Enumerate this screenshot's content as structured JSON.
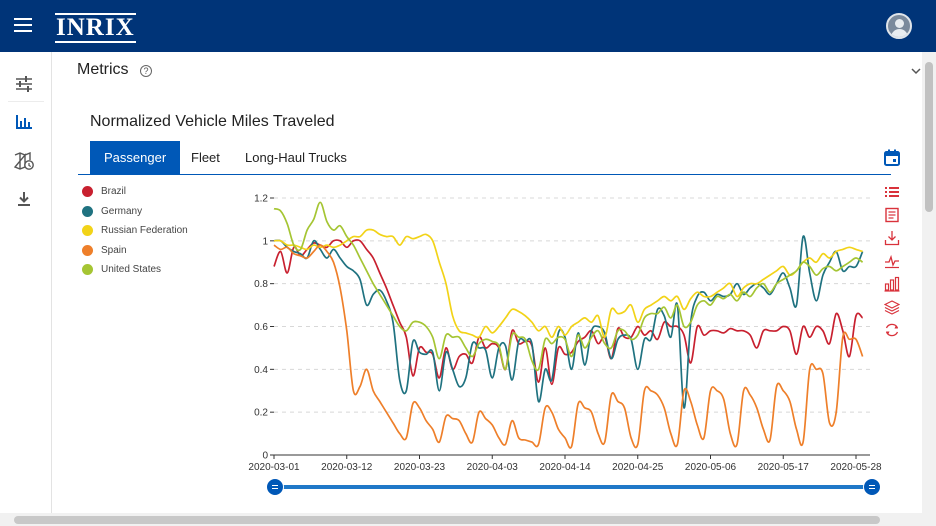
{
  "brand": {
    "logo_text": "INRIX",
    "color": "#003478",
    "accent": "#0058b7"
  },
  "header": {
    "avatar_icon": "user-avatar-icon"
  },
  "sidenav": {
    "items": [
      {
        "icon": "filter-sliders-icon",
        "active": false
      },
      {
        "icon": "bar-chart-icon",
        "active": true
      },
      {
        "icon": "map-clock-icon",
        "active": false
      },
      {
        "icon": "download-icon",
        "active": false
      }
    ]
  },
  "section": {
    "title": "Metrics"
  },
  "chart_title": "Normalized Vehicle Miles Traveled",
  "tabs": [
    {
      "label": "Passenger",
      "active": true
    },
    {
      "label": "Fleet",
      "active": false
    },
    {
      "label": "Long-Haul Trucks",
      "active": false
    }
  ],
  "toolbox": [
    "list-icon",
    "document-icon",
    "download-icon",
    "line-chart-icon",
    "bar-chart-icon",
    "stack-layers-icon",
    "refresh-icon"
  ],
  "chart_data": {
    "type": "line",
    "title": "Normalized Vehicle Miles Traveled",
    "xlabel": "",
    "ylabel": "",
    "x_ticks": [
      "2020-03-01",
      "2020-03-12",
      "2020-03-23",
      "2020-04-03",
      "2020-04-14",
      "2020-04-25",
      "2020-05-06",
      "2020-05-17",
      "2020-05-28"
    ],
    "y_ticks": [
      "0",
      "0.2",
      "0.4",
      "0.6",
      "0.8",
      "1",
      "1.2"
    ],
    "ylim": [
      0,
      1.2
    ],
    "x_start": "2020-03-01",
    "x_end": "2020-05-28",
    "grid": "horizontal dashed",
    "legend_position": "left",
    "series": [
      {
        "name": "Brazil",
        "color": "#c8202f",
        "values": [
          0.88,
          0.95,
          0.85,
          0.97,
          0.93,
          0.96,
          0.99,
          0.98,
          0.97,
          1.0,
          1.0,
          0.97,
          1.0,
          1.0,
          0.96,
          0.92,
          0.85,
          0.78,
          0.7,
          0.62,
          0.55,
          0.37,
          0.5,
          0.48,
          0.47,
          0.36,
          0.5,
          0.4,
          0.46,
          0.47,
          0.43,
          0.55,
          0.5,
          0.52,
          0.5,
          0.4,
          0.58,
          0.52,
          0.53,
          0.51,
          0.34,
          0.5,
          0.33,
          0.5,
          0.47,
          0.48,
          0.53,
          0.55,
          0.58,
          0.52,
          0.55,
          0.45,
          0.59,
          0.55,
          0.55,
          0.6,
          0.56,
          0.58,
          0.54,
          0.62,
          0.6,
          0.6,
          0.56,
          0.43,
          0.6,
          0.56,
          0.58,
          0.58,
          0.57,
          0.59,
          0.58,
          0.58,
          0.56,
          0.5,
          0.58,
          0.58,
          0.58,
          0.6,
          0.58,
          0.47,
          0.6,
          0.55,
          0.6,
          0.58,
          0.52,
          0.66,
          0.58,
          0.46,
          0.65,
          0.64
        ]
      },
      {
        "name": "Germany",
        "color": "#1f7280",
        "values": [
          1.0,
          1.0,
          0.97,
          0.95,
          0.94,
          0.92,
          1.0,
          0.96,
          0.92,
          0.96,
          0.92,
          0.88,
          0.86,
          0.82,
          0.7,
          0.75,
          0.77,
          0.72,
          0.62,
          0.35,
          0.3,
          0.53,
          0.48,
          0.47,
          0.48,
          0.3,
          0.48,
          0.4,
          0.32,
          0.36,
          0.52,
          0.5,
          0.49,
          0.36,
          0.5,
          0.51,
          0.35,
          0.53,
          0.53,
          0.52,
          0.25,
          0.4,
          0.35,
          0.57,
          0.55,
          0.4,
          0.57,
          0.42,
          0.58,
          0.6,
          0.57,
          0.45,
          0.54,
          0.56,
          0.54,
          0.4,
          0.54,
          0.54,
          0.68,
          0.65,
          0.55,
          0.7,
          0.22,
          0.62,
          0.74,
          0.76,
          0.72,
          0.75,
          0.74,
          0.75,
          0.8,
          0.75,
          0.78,
          0.8,
          0.78,
          0.75,
          0.8,
          0.85,
          0.78,
          0.7,
          1.02,
          0.85,
          0.72,
          0.84,
          0.9,
          0.95,
          0.86,
          0.88,
          0.88,
          0.95
        ]
      },
      {
        "name": "Russian Federation",
        "color": "#f2d318",
        "values": [
          1.0,
          1.0,
          0.98,
          0.98,
          0.97,
          0.96,
          0.98,
          0.97,
          0.98,
          0.97,
          0.98,
          1.0,
          1.02,
          1.02,
          1.05,
          1.05,
          1.03,
          1.02,
          1.02,
          0.98,
          1.02,
          1.01,
          1.02,
          1.03,
          1.0,
          0.9,
          0.8,
          0.65,
          0.58,
          0.57,
          0.56,
          0.55,
          0.6,
          0.57,
          0.6,
          0.64,
          0.68,
          0.67,
          0.65,
          0.62,
          0.58,
          0.6,
          0.55,
          0.6,
          0.56,
          0.6,
          0.62,
          0.64,
          0.62,
          0.65,
          0.55,
          0.68,
          0.66,
          0.67,
          0.7,
          0.62,
          0.68,
          0.7,
          0.72,
          0.74,
          0.72,
          0.74,
          0.68,
          0.73,
          0.76,
          0.74,
          0.74,
          0.76,
          0.78,
          0.8,
          0.74,
          0.78,
          0.8,
          0.8,
          0.82,
          0.84,
          0.86,
          0.88,
          0.84,
          0.86,
          0.9,
          0.92,
          0.9,
          0.94,
          0.92,
          0.95,
          0.96,
          0.97,
          0.96,
          0.95
        ]
      },
      {
        "name": "Spain",
        "color": "#ee7f2a",
        "values": [
          0.98,
          0.96,
          0.97,
          0.94,
          0.93,
          0.92,
          0.95,
          0.98,
          0.95,
          0.9,
          0.78,
          0.58,
          0.3,
          0.32,
          0.4,
          0.3,
          0.25,
          0.2,
          0.15,
          0.1,
          0.08,
          0.24,
          0.22,
          0.16,
          0.12,
          0.06,
          0.18,
          0.17,
          0.16,
          0.1,
          0.06,
          0.2,
          0.17,
          0.14,
          0.08,
          0.05,
          0.16,
          0.08,
          0.07,
          0.06,
          0.05,
          0.22,
          0.2,
          0.12,
          0.08,
          0.04,
          0.24,
          0.22,
          0.2,
          0.1,
          0.06,
          0.28,
          0.25,
          0.22,
          0.08,
          0.05,
          0.3,
          0.3,
          0.28,
          0.22,
          0.1,
          0.05,
          0.3,
          0.25,
          0.14,
          0.08,
          0.3,
          0.3,
          0.26,
          0.1,
          0.05,
          0.3,
          0.28,
          0.22,
          0.12,
          0.07,
          0.32,
          0.3,
          0.25,
          0.12,
          0.06,
          0.4,
          0.4,
          0.38,
          0.15,
          0.2,
          0.55,
          0.54,
          0.54,
          0.46
        ]
      },
      {
        "name": "United States",
        "color": "#a5c533",
        "values": [
          1.15,
          1.14,
          1.08,
          0.98,
          0.96,
          1.05,
          1.1,
          1.18,
          1.09,
          1.05,
          1.07,
          1.02,
          0.98,
          0.92,
          0.86,
          0.8,
          0.75,
          0.7,
          0.65,
          0.6,
          0.58,
          0.62,
          0.62,
          0.6,
          0.55,
          0.45,
          0.56,
          0.55,
          0.55,
          0.5,
          0.46,
          0.52,
          0.54,
          0.53,
          0.51,
          0.4,
          0.56,
          0.55,
          0.54,
          0.44,
          0.4,
          0.54,
          0.52,
          0.55,
          0.54,
          0.46,
          0.56,
          0.5,
          0.55,
          0.58,
          0.52,
          0.5,
          0.58,
          0.58,
          0.54,
          0.56,
          0.64,
          0.66,
          0.66,
          0.69,
          0.64,
          0.7,
          0.6,
          0.62,
          0.7,
          0.72,
          0.7,
          0.74,
          0.73,
          0.75,
          0.72,
          0.76,
          0.74,
          0.78,
          0.8,
          0.76,
          0.8,
          0.82,
          0.84,
          0.86,
          0.9,
          0.88,
          0.84,
          0.87,
          0.88,
          0.86,
          0.88,
          0.9,
          0.92,
          0.9
        ]
      }
    ]
  },
  "zoom": {
    "start_fraction": 0,
    "end_fraction": 1
  }
}
